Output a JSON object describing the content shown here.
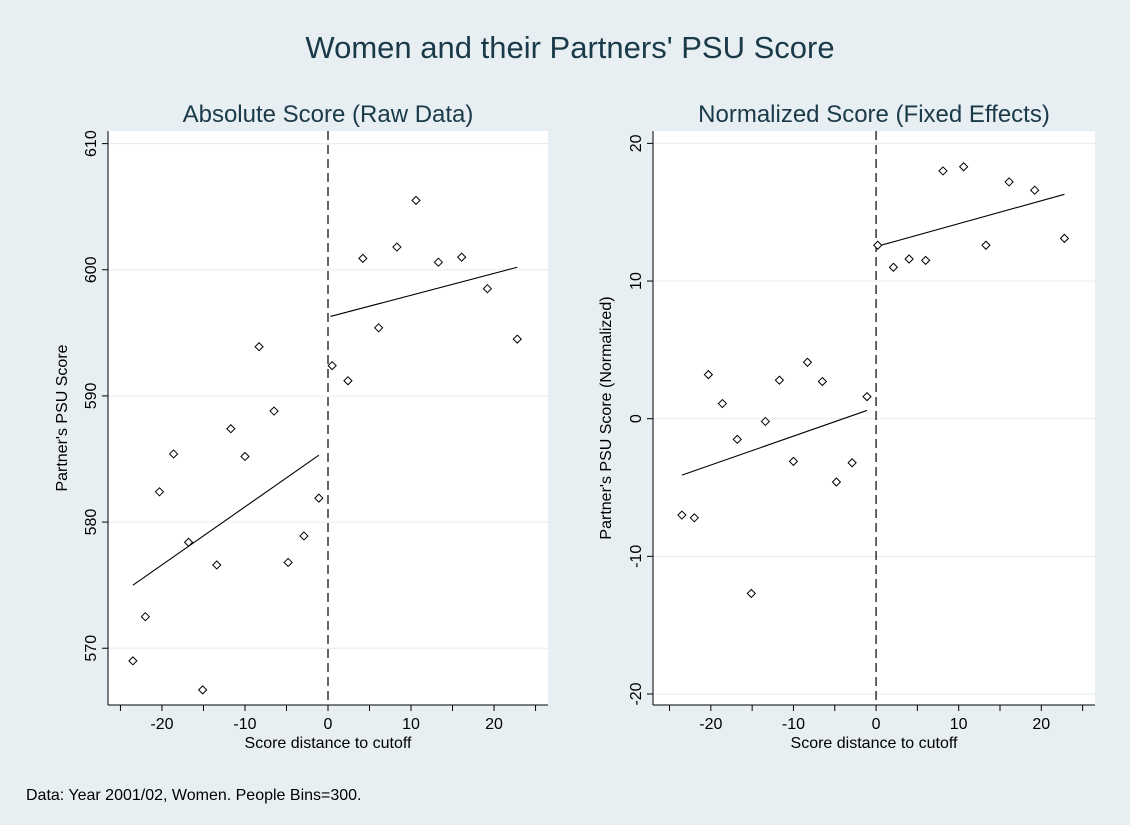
{
  "title": "Women and their Partners' PSU Score",
  "note": "Data: Year 2001/02, Women. People Bins=300.",
  "chart_data": [
    {
      "type": "scatter",
      "title": "Absolute Score (Raw Data)",
      "xlabel": "Score distance to cutoff",
      "ylabel": "Partner's PSU Score",
      "xlim": [
        -26.5,
        26.5
      ],
      "ylim": [
        565.5,
        611
      ],
      "x_ticks": [
        -20,
        -10,
        0,
        10,
        20
      ],
      "x_tick_labels": [
        "-20",
        "-10",
        "0",
        "10",
        "20"
      ],
      "x_minor_ticks": [
        -25,
        -15,
        -5,
        5,
        15,
        25
      ],
      "y_ticks": [
        570,
        580,
        590,
        600,
        610
      ],
      "y_tick_labels": [
        "570",
        "580",
        "590",
        "600",
        "610"
      ],
      "grid": true,
      "cutoff_x": 0,
      "points": [
        {
          "x": -23.5,
          "y": 569.0
        },
        {
          "x": -22.0,
          "y": 572.5
        },
        {
          "x": -20.3,
          "y": 582.4
        },
        {
          "x": -18.6,
          "y": 585.4
        },
        {
          "x": -16.8,
          "y": 578.4
        },
        {
          "x": -15.1,
          "y": 566.7
        },
        {
          "x": -13.4,
          "y": 576.6
        },
        {
          "x": -11.7,
          "y": 587.4
        },
        {
          "x": -10.0,
          "y": 585.2
        },
        {
          "x": -8.3,
          "y": 593.9
        },
        {
          "x": -6.5,
          "y": 588.8
        },
        {
          "x": -4.8,
          "y": 576.8
        },
        {
          "x": -2.9,
          "y": 578.9
        },
        {
          "x": -1.1,
          "y": 581.9
        },
        {
          "x": 0.5,
          "y": 592.4
        },
        {
          "x": 2.4,
          "y": 591.2
        },
        {
          "x": 4.2,
          "y": 600.9
        },
        {
          "x": 6.1,
          "y": 595.4
        },
        {
          "x": 8.3,
          "y": 601.8
        },
        {
          "x": 10.6,
          "y": 605.5
        },
        {
          "x": 13.3,
          "y": 600.6
        },
        {
          "x": 16.1,
          "y": 601.0
        },
        {
          "x": 19.2,
          "y": 598.5
        },
        {
          "x": 22.8,
          "y": 594.5
        }
      ],
      "fit_lines": [
        {
          "x": [
            -23.5,
            -1.1
          ],
          "y": [
            575.0,
            585.3
          ]
        },
        {
          "x": [
            0.3,
            22.8
          ],
          "y": [
            596.3,
            600.2
          ]
        }
      ]
    },
    {
      "type": "scatter",
      "title": "Normalized Score (Fixed Effects)",
      "xlabel": "Score distance to cutoff",
      "ylabel": "Partner's PSU Score (Normalized)",
      "xlim": [
        -27,
        26.5
      ],
      "ylim": [
        -20.8,
        20.9
      ],
      "x_ticks": [
        -20,
        -10,
        0,
        10,
        20
      ],
      "x_tick_labels": [
        "-20",
        "-10",
        "0",
        "10",
        "20"
      ],
      "x_minor_ticks": [
        -25,
        -15,
        -5,
        5,
        15,
        25
      ],
      "y_ticks": [
        -20,
        -10,
        0,
        10,
        20
      ],
      "y_tick_labels": [
        "-20",
        "-10",
        "0",
        "10",
        "20"
      ],
      "grid": true,
      "cutoff_x": 0,
      "points": [
        {
          "x": -23.5,
          "y": -7.0
        },
        {
          "x": -22.0,
          "y": -7.2
        },
        {
          "x": -20.3,
          "y": 3.2
        },
        {
          "x": -18.6,
          "y": 1.1
        },
        {
          "x": -16.8,
          "y": -1.5
        },
        {
          "x": -15.1,
          "y": -12.7
        },
        {
          "x": -13.4,
          "y": -0.2
        },
        {
          "x": -11.7,
          "y": 2.8
        },
        {
          "x": -10.0,
          "y": -3.1
        },
        {
          "x": -8.3,
          "y": 4.1
        },
        {
          "x": -6.5,
          "y": 2.7
        },
        {
          "x": -4.8,
          "y": -4.6
        },
        {
          "x": -2.9,
          "y": -3.2
        },
        {
          "x": -1.1,
          "y": 1.6
        },
        {
          "x": 0.2,
          "y": 12.6
        },
        {
          "x": 2.1,
          "y": 11.0
        },
        {
          "x": 4.0,
          "y": 11.6
        },
        {
          "x": 6.0,
          "y": 11.5
        },
        {
          "x": 8.1,
          "y": 18.0
        },
        {
          "x": 10.6,
          "y": 18.3
        },
        {
          "x": 13.3,
          "y": 12.6
        },
        {
          "x": 16.1,
          "y": 17.2
        },
        {
          "x": 19.2,
          "y": 16.6
        },
        {
          "x": 22.8,
          "y": 13.1
        }
      ],
      "fit_lines": [
        {
          "x": [
            -23.5,
            -1.1
          ],
          "y": [
            -4.1,
            0.6
          ]
        },
        {
          "x": [
            0.0,
            22.8
          ],
          "y": [
            12.5,
            16.3
          ]
        }
      ]
    }
  ]
}
